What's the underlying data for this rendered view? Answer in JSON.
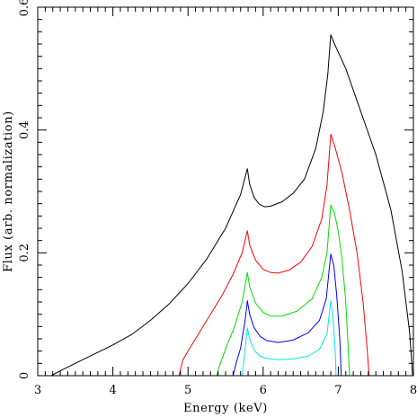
{
  "chart_data": {
    "type": "line",
    "title": "",
    "xlabel": "Energy (keV)",
    "ylabel": "Flux (arb. normalization)",
    "xlim": [
      3,
      8
    ],
    "ylim": [
      0,
      0.6
    ],
    "x_ticks": [
      3,
      4,
      5,
      6,
      7,
      8
    ],
    "x_tick_labels": [
      "3",
      "4",
      "5",
      "6",
      "7",
      "8"
    ],
    "y_ticks": [
      0,
      0.2,
      0.4,
      0.6
    ],
    "y_tick_labels": [
      "0",
      "0.2",
      "0.4",
      "0.6"
    ],
    "grid": false,
    "legend": "none",
    "series": [
      {
        "color": "#000000",
        "points": [
          [
            3.18,
            0.0
          ],
          [
            3.3,
            0.008
          ],
          [
            3.5,
            0.02
          ],
          [
            3.75,
            0.035
          ],
          [
            4.0,
            0.05
          ],
          [
            4.25,
            0.067
          ],
          [
            4.5,
            0.09
          ],
          [
            4.75,
            0.117
          ],
          [
            5.0,
            0.15
          ],
          [
            5.25,
            0.19
          ],
          [
            5.5,
            0.24
          ],
          [
            5.7,
            0.295
          ],
          [
            5.79,
            0.337
          ],
          [
            5.82,
            0.312
          ],
          [
            5.88,
            0.29
          ],
          [
            5.95,
            0.279
          ],
          [
            6.02,
            0.275
          ],
          [
            6.1,
            0.276
          ],
          [
            6.25,
            0.283
          ],
          [
            6.4,
            0.297
          ],
          [
            6.55,
            0.32
          ],
          [
            6.7,
            0.37
          ],
          [
            6.8,
            0.43
          ],
          [
            6.86,
            0.49
          ],
          [
            6.9,
            0.555
          ],
          [
            6.95,
            0.54
          ],
          [
            7.1,
            0.5
          ],
          [
            7.3,
            0.43
          ],
          [
            7.5,
            0.36
          ],
          [
            7.7,
            0.27
          ],
          [
            7.85,
            0.17
          ],
          [
            7.95,
            0.07
          ],
          [
            7.99,
            0.0
          ]
        ]
      },
      {
        "color": "#ff0000",
        "points": [
          [
            4.88,
            0.0
          ],
          [
            4.93,
            0.025
          ],
          [
            5.0,
            0.04
          ],
          [
            5.15,
            0.07
          ],
          [
            5.3,
            0.1
          ],
          [
            5.45,
            0.13
          ],
          [
            5.6,
            0.165
          ],
          [
            5.72,
            0.2
          ],
          [
            5.79,
            0.236
          ],
          [
            5.82,
            0.213
          ],
          [
            5.9,
            0.188
          ],
          [
            6.0,
            0.173
          ],
          [
            6.1,
            0.168
          ],
          [
            6.2,
            0.167
          ],
          [
            6.35,
            0.172
          ],
          [
            6.5,
            0.185
          ],
          [
            6.65,
            0.21
          ],
          [
            6.78,
            0.255
          ],
          [
            6.85,
            0.31
          ],
          [
            6.9,
            0.393
          ],
          [
            6.95,
            0.375
          ],
          [
            7.05,
            0.33
          ],
          [
            7.15,
            0.27
          ],
          [
            7.25,
            0.2
          ],
          [
            7.33,
            0.12
          ],
          [
            7.38,
            0.05
          ],
          [
            7.41,
            0.0
          ]
        ]
      },
      {
        "color": "#00dd00",
        "points": [
          [
            5.38,
            0.0
          ],
          [
            5.43,
            0.02
          ],
          [
            5.52,
            0.05
          ],
          [
            5.62,
            0.08
          ],
          [
            5.72,
            0.12
          ],
          [
            5.79,
            0.168
          ],
          [
            5.82,
            0.145
          ],
          [
            5.9,
            0.118
          ],
          [
            6.0,
            0.103
          ],
          [
            6.1,
            0.097
          ],
          [
            6.25,
            0.097
          ],
          [
            6.45,
            0.105
          ],
          [
            6.65,
            0.125
          ],
          [
            6.78,
            0.16
          ],
          [
            6.85,
            0.2
          ],
          [
            6.9,
            0.278
          ],
          [
            6.95,
            0.265
          ],
          [
            7.0,
            0.235
          ],
          [
            7.05,
            0.19
          ],
          [
            7.1,
            0.12
          ],
          [
            7.13,
            0.05
          ],
          [
            7.15,
            0.0
          ]
        ]
      },
      {
        "color": "#0000ff",
        "points": [
          [
            5.6,
            0.0
          ],
          [
            5.64,
            0.02
          ],
          [
            5.7,
            0.045
          ],
          [
            5.76,
            0.09
          ],
          [
            5.79,
            0.122
          ],
          [
            5.82,
            0.1
          ],
          [
            5.88,
            0.078
          ],
          [
            5.96,
            0.064
          ],
          [
            6.05,
            0.057
          ],
          [
            6.2,
            0.054
          ],
          [
            6.4,
            0.058
          ],
          [
            6.6,
            0.07
          ],
          [
            6.75,
            0.09
          ],
          [
            6.84,
            0.125
          ],
          [
            6.9,
            0.198
          ],
          [
            6.94,
            0.18
          ],
          [
            6.98,
            0.13
          ],
          [
            7.02,
            0.06
          ],
          [
            7.04,
            0.0
          ]
        ]
      },
      {
        "color": "#00e5e5",
        "points": [
          [
            5.72,
            0.0
          ],
          [
            5.74,
            0.02
          ],
          [
            5.77,
            0.055
          ],
          [
            5.79,
            0.078
          ],
          [
            5.82,
            0.06
          ],
          [
            5.88,
            0.041
          ],
          [
            5.96,
            0.032
          ],
          [
            6.05,
            0.028
          ],
          [
            6.2,
            0.026
          ],
          [
            6.4,
            0.027
          ],
          [
            6.6,
            0.032
          ],
          [
            6.75,
            0.043
          ],
          [
            6.85,
            0.068
          ],
          [
            6.9,
            0.122
          ],
          [
            6.93,
            0.095
          ],
          [
            6.96,
            0.04
          ],
          [
            6.97,
            0.0
          ]
        ]
      }
    ]
  },
  "colors": {
    "axis": "#000000",
    "background": "#ffffff"
  }
}
